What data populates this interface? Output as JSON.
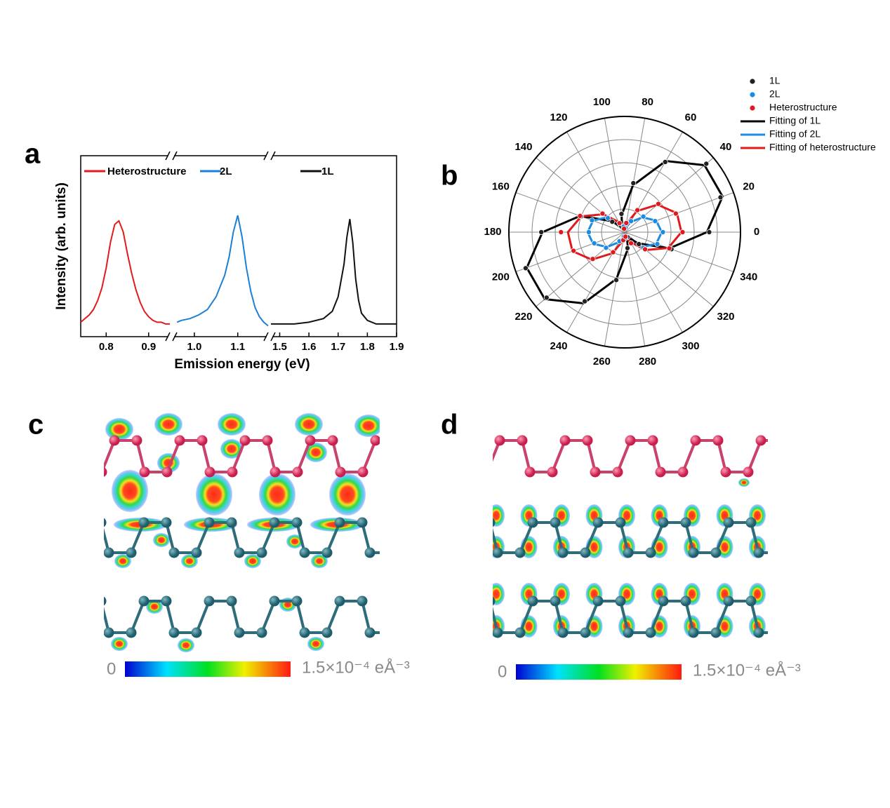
{
  "chart_data": [
    {
      "panel": "a",
      "type": "line",
      "x_label": "Emission energy (eV)",
      "y_label": "Intensity (arb. units)",
      "ylim": [
        0,
        1
      ],
      "x_segments": [
        {
          "xlim": [
            0.74,
            0.95
          ],
          "xticks": [
            0.8,
            0.9
          ]
        },
        {
          "xlim": [
            0.95,
            1.17
          ],
          "xticks": [
            {
              "value": 1,
              "label": "1.0"
            },
            1.1
          ]
        },
        {
          "xlim": [
            1.47,
            1.9
          ],
          "xticks": [
            1.5,
            1.6,
            1.7,
            1.8,
            1.9
          ]
        }
      ],
      "series": [
        {
          "name": "Heterostructure",
          "color": "#e31a1c",
          "x": [
            0.74,
            0.75,
            0.76,
            0.77,
            0.78,
            0.79,
            0.8,
            0.81,
            0.82,
            0.83,
            0.84,
            0.85,
            0.86,
            0.87,
            0.88,
            0.89,
            0.9,
            0.91,
            0.92,
            0.93,
            0.94,
            0.95
          ],
          "values": [
            0.08,
            0.1,
            0.12,
            0.15,
            0.2,
            0.27,
            0.38,
            0.52,
            0.62,
            0.64,
            0.58,
            0.46,
            0.35,
            0.26,
            0.19,
            0.14,
            0.11,
            0.09,
            0.08,
            0.08,
            0.07,
            0.07
          ]
        },
        {
          "name": "2L",
          "color": "#1c7fd6",
          "x": [
            0.96,
            0.97,
            0.99,
            1.01,
            1.03,
            1.05,
            1.07,
            1.08,
            1.09,
            1.1,
            1.11,
            1.12,
            1.13,
            1.14,
            1.15,
            1.16,
            1.17
          ],
          "values": [
            0.08,
            0.09,
            0.1,
            0.12,
            0.15,
            0.22,
            0.34,
            0.44,
            0.58,
            0.67,
            0.55,
            0.38,
            0.25,
            0.16,
            0.11,
            0.08,
            0.06
          ]
        },
        {
          "name": "1L",
          "color": "#111111",
          "x": [
            1.47,
            1.5,
            1.55,
            1.6,
            1.65,
            1.68,
            1.7,
            1.72,
            1.73,
            1.74,
            1.75,
            1.76,
            1.77,
            1.78,
            1.8,
            1.83,
            1.86,
            1.9
          ],
          "values": [
            0.07,
            0.07,
            0.07,
            0.08,
            0.1,
            0.14,
            0.22,
            0.4,
            0.55,
            0.65,
            0.52,
            0.32,
            0.2,
            0.13,
            0.09,
            0.07,
            0.07,
            0.07
          ]
        }
      ]
    },
    {
      "panel": "b",
      "type": "polar",
      "theta": [
        0,
        20,
        40,
        60,
        80,
        100,
        120,
        140,
        160,
        180,
        200,
        220,
        240,
        260,
        280,
        300,
        320,
        340
      ],
      "thetaticks": [
        0,
        20,
        40,
        60,
        80,
        100,
        120,
        140,
        160,
        180,
        200,
        220,
        240,
        260,
        280,
        300,
        320,
        340
      ],
      "rlim": [
        0,
        1
      ],
      "rticks": [
        0.2,
        0.4,
        0.6,
        0.8,
        1
      ],
      "series": [
        {
          "name": "1L",
          "color": "#222222",
          "style": "scatter",
          "values": [
            0.73,
            0.88,
            0.92,
            0.7,
            0.43,
            0.16,
            0.06,
            0.14,
            0.4,
            0.72,
            0.91,
            0.88,
            0.69,
            0.42,
            0.14,
            0.05,
            0.16,
            0.43
          ]
        },
        {
          "name": "2L",
          "color": "#1c8be0",
          "style": "scatter",
          "values": [
            0.33,
            0.28,
            0.21,
            0.11,
            0.04,
            0.05,
            0.09,
            0.19,
            0.3,
            0.31,
            0.28,
            0.21,
            0.09,
            0.04,
            0.05,
            0.11,
            0.21,
            0.3
          ]
        },
        {
          "name": "Heterostructure",
          "color": "#e0191f",
          "style": "scatter",
          "values": [
            0.5,
            0.47,
            0.38,
            0.22,
            0.08,
            0.03,
            0.09,
            0.25,
            0.41,
            0.55,
            0.47,
            0.36,
            0.2,
            0.07,
            0.04,
            0.11,
            0.23,
            0.41
          ]
        },
        {
          "name": "Fitting of 1L",
          "color": "#000000",
          "style": "line",
          "values": [
            0.71,
            0.9,
            0.9,
            0.71,
            0.41,
            0.15,
            0.05,
            0.15,
            0.41,
            0.71,
            0.9,
            0.9,
            0.71,
            0.41,
            0.15,
            0.05,
            0.15,
            0.41
          ]
        },
        {
          "name": "Fitting of 2L",
          "color": "#1c8be0",
          "style": "line",
          "values": [
            0.32,
            0.29,
            0.2,
            0.1,
            0.04,
            0.04,
            0.1,
            0.2,
            0.29,
            0.32,
            0.29,
            0.2,
            0.1,
            0.04,
            0.04,
            0.1,
            0.2,
            0.29
          ]
        },
        {
          "name": "Fitting of heterostructure",
          "color": "#e0191f",
          "style": "line",
          "values": [
            0.49,
            0.48,
            0.37,
            0.21,
            0.07,
            0.03,
            0.1,
            0.24,
            0.4,
            0.49,
            0.48,
            0.37,
            0.21,
            0.07,
            0.03,
            0.1,
            0.24,
            0.4
          ]
        }
      ]
    }
  ],
  "figures": [
    {
      "panel": "c",
      "colorbar": {
        "min_label": "0",
        "max_label": "1.5×10⁻⁴ eÅ⁻³"
      }
    },
    {
      "panel": "d",
      "colorbar": {
        "min_label": "0",
        "max_label": "1.5×10⁻⁴ eÅ⁻³"
      }
    }
  ]
}
